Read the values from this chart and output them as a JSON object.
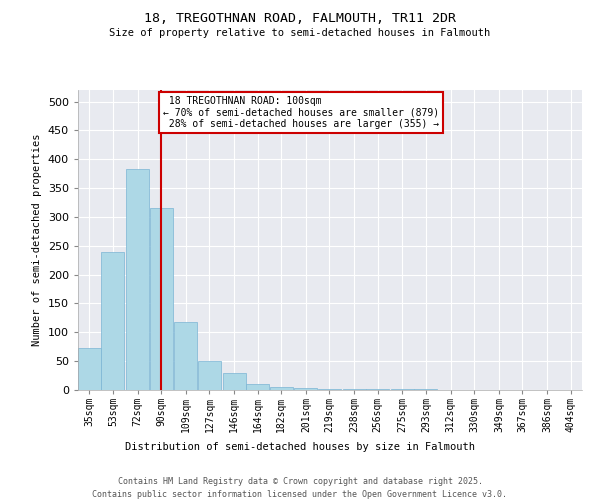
{
  "title_line1": "18, TREGOTHNAN ROAD, FALMOUTH, TR11 2DR",
  "title_line2": "Size of property relative to semi-detached houses in Falmouth",
  "xlabel": "Distribution of semi-detached houses by size in Falmouth",
  "ylabel": "Number of semi-detached properties",
  "property_size": 100,
  "property_label": "18 TREGOTHNAN ROAD: 100sqm",
  "pct_smaller": 70,
  "count_smaller": 879,
  "pct_larger": 28,
  "count_larger": 355,
  "bin_labels": [
    "35sqm",
    "53sqm",
    "72sqm",
    "90sqm",
    "109sqm",
    "127sqm",
    "146sqm",
    "164sqm",
    "182sqm",
    "201sqm",
    "219sqm",
    "238sqm",
    "256sqm",
    "275sqm",
    "293sqm",
    "312sqm",
    "330sqm",
    "349sqm",
    "367sqm",
    "386sqm",
    "404sqm"
  ],
  "bin_edges": [
    35,
    53,
    72,
    90,
    109,
    127,
    146,
    164,
    182,
    201,
    219,
    238,
    256,
    275,
    293,
    312,
    330,
    349,
    367,
    386,
    404
  ],
  "bar_values": [
    72,
    240,
    383,
    315,
    118,
    50,
    30,
    10,
    5,
    3,
    2,
    2,
    1,
    1,
    1,
    0,
    0,
    0,
    0,
    0
  ],
  "bar_color": "#add8e6",
  "bar_edge_color": "#7ab4d4",
  "vline_color": "#cc0000",
  "annotation_box_color": "#cc0000",
  "background_color": "#e8eaf0",
  "ylim": [
    0,
    520
  ],
  "yticks": [
    0,
    50,
    100,
    150,
    200,
    250,
    300,
    350,
    400,
    450,
    500
  ],
  "footer_line1": "Contains HM Land Registry data © Crown copyright and database right 2025.",
  "footer_line2": "Contains public sector information licensed under the Open Government Licence v3.0."
}
